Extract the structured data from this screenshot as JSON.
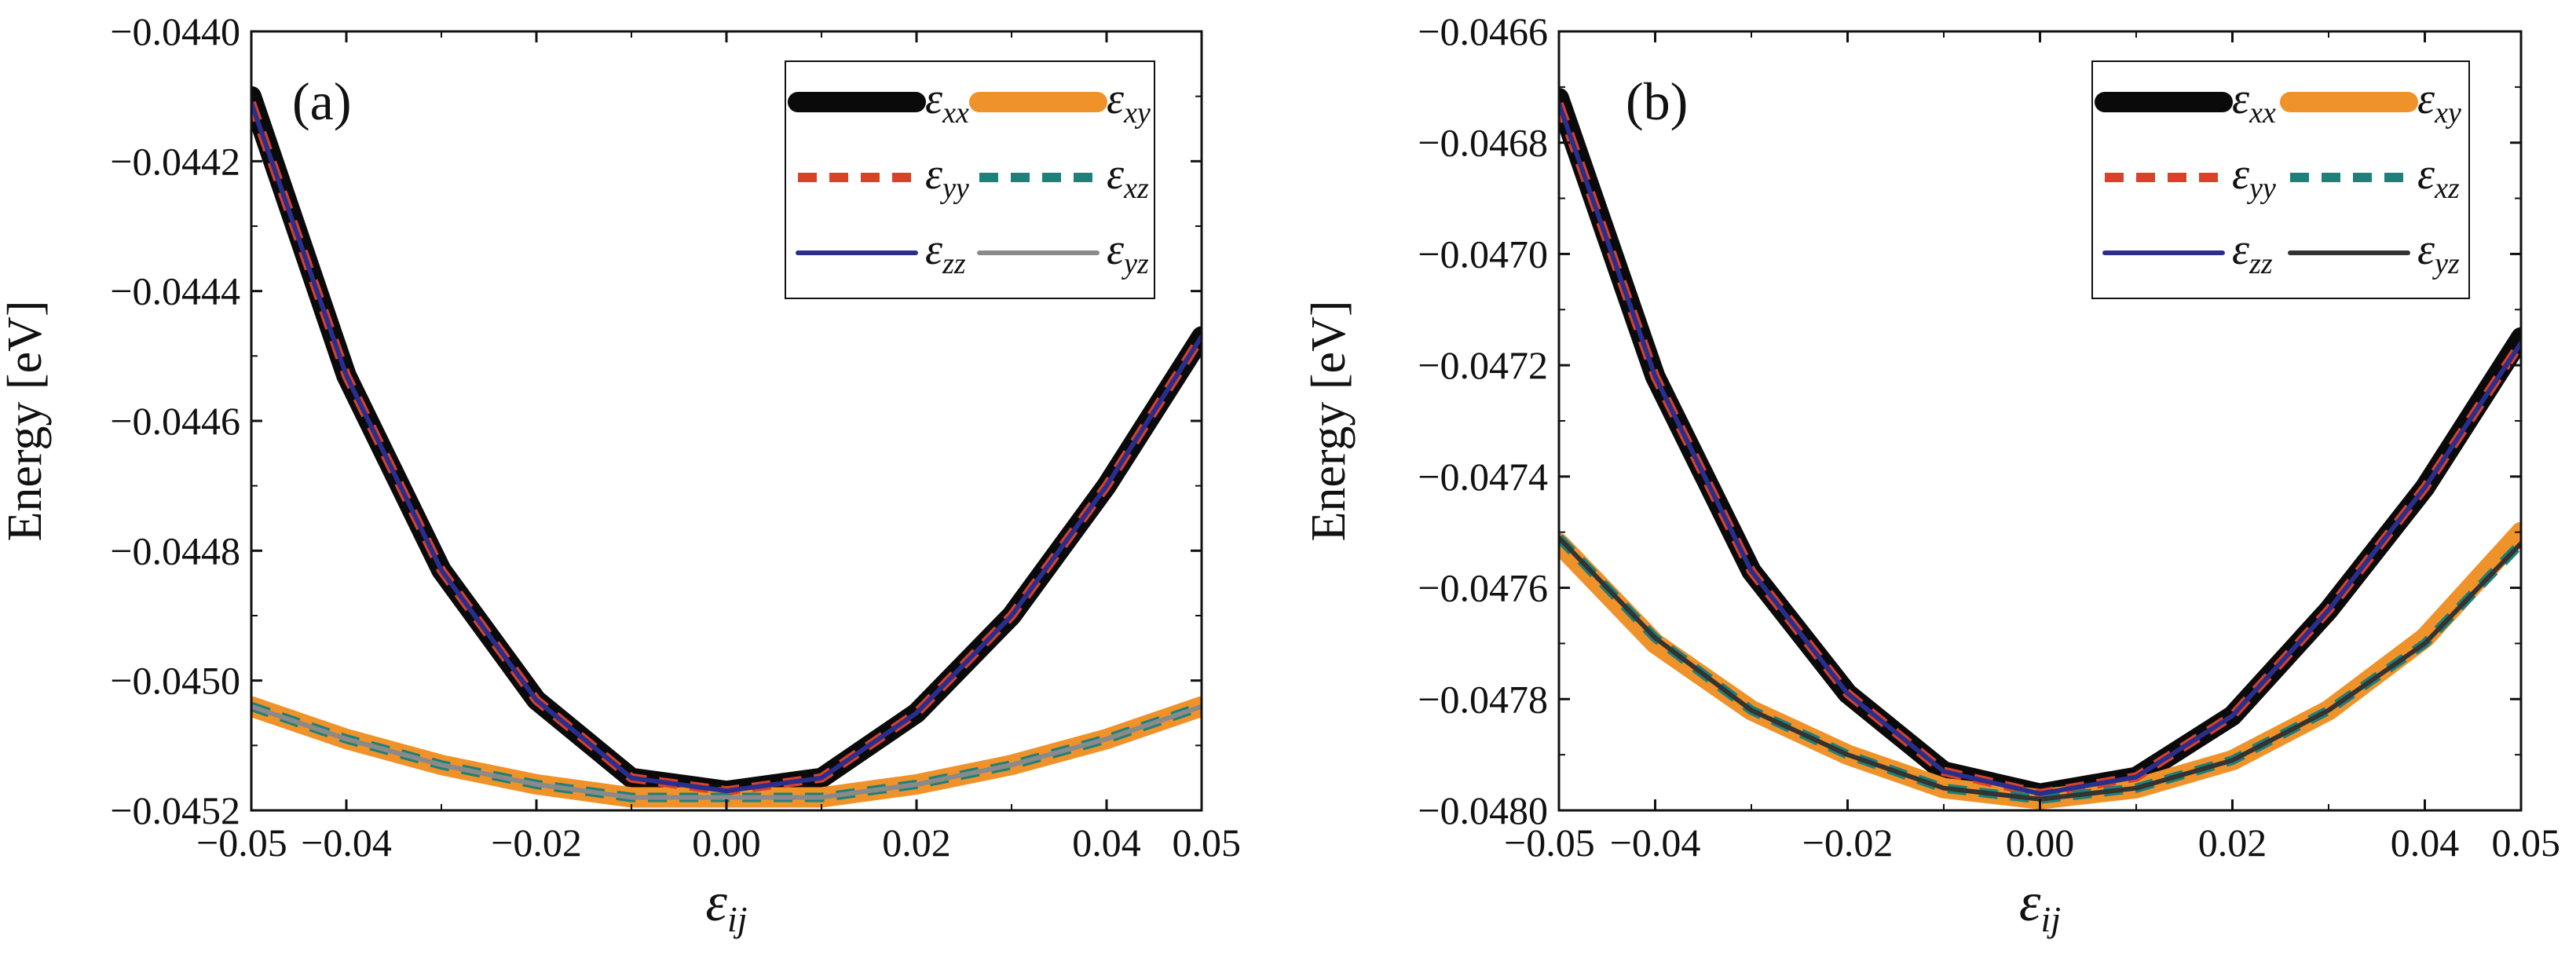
{
  "chart_data": [
    {
      "type": "line",
      "panel_label": "(a)",
      "xlabel": "ε_ij",
      "ylabel": "Energy  [eV]",
      "xlim": [
        -0.05,
        0.05
      ],
      "ylim": [
        -0.0452,
        -0.044
      ],
      "x_ticks": [
        -0.05,
        -0.04,
        -0.02,
        0.0,
        0.02,
        0.04,
        0.05
      ],
      "x_tick_labels": [
        "−0.05",
        "−0.04",
        "−0.02",
        "0.00",
        "0.02",
        "0.04",
        "0.05"
      ],
      "y_ticks": [
        -0.0452,
        -0.045,
        -0.0448,
        -0.0446,
        -0.0444,
        -0.0442,
        -0.044
      ],
      "y_tick_labels": [
        "−0.0452",
        "−0.0450",
        "−0.0448",
        "−0.0446",
        "−0.0444",
        "−0.0442",
        "−0.0440"
      ],
      "legend_position": "top-right",
      "x": [
        -0.05,
        -0.04,
        -0.03,
        -0.02,
        -0.01,
        0.0,
        0.01,
        0.02,
        0.03,
        0.04,
        0.05
      ],
      "series": [
        {
          "name": "xx",
          "symbol": "ε",
          "sub": "xx",
          "color": "#0a0a0a",
          "style": "thick",
          "values": [
            -0.0441,
            -0.04453,
            -0.04483,
            -0.04503,
            -0.04515,
            -0.04517,
            -0.04515,
            -0.04505,
            -0.0449,
            -0.0447,
            -0.04447
          ]
        },
        {
          "name": "xy",
          "symbol": "ε",
          "sub": "xy",
          "color": "#f0922a",
          "style": "thick",
          "values": [
            -0.04504,
            -0.04509,
            -0.04513,
            -0.04516,
            -0.04518,
            -0.04518,
            -0.04518,
            -0.04516,
            -0.04513,
            -0.04509,
            -0.04504
          ]
        },
        {
          "name": "yy",
          "symbol": "ε",
          "sub": "yy",
          "color": "#d9412a",
          "style": "dashed",
          "values": [
            -0.04411,
            -0.04453,
            -0.04483,
            -0.04503,
            -0.04515,
            -0.04517,
            -0.04515,
            -0.04505,
            -0.0449,
            -0.0447,
            -0.04447
          ]
        },
        {
          "name": "xz",
          "symbol": "ε",
          "sub": "xz",
          "color": "#1e8078",
          "style": "dashed",
          "values": [
            -0.04504,
            -0.04509,
            -0.04513,
            -0.04516,
            -0.04518,
            -0.04518,
            -0.04518,
            -0.04516,
            -0.04513,
            -0.04509,
            -0.04504
          ]
        },
        {
          "name": "zz",
          "symbol": "ε",
          "sub": "zz",
          "color": "#2a2e8c",
          "style": "thin",
          "values": [
            -0.04411,
            -0.04453,
            -0.04483,
            -0.04503,
            -0.04515,
            -0.04517,
            -0.04515,
            -0.04505,
            -0.0449,
            -0.0447,
            -0.04447
          ]
        },
        {
          "name": "yz",
          "symbol": "ε",
          "sub": "yz",
          "color": "#8a8a8a",
          "style": "thin",
          "values": [
            -0.04504,
            -0.04509,
            -0.04513,
            -0.04516,
            -0.04518,
            -0.04518,
            -0.04518,
            -0.04516,
            -0.04513,
            -0.04509,
            -0.04504
          ]
        }
      ]
    },
    {
      "type": "line",
      "panel_label": "(b)",
      "xlabel": "ε_ij",
      "ylabel": "Energy  [eV]",
      "xlim": [
        -0.05,
        0.05
      ],
      "ylim": [
        -0.048,
        -0.0466
      ],
      "x_ticks": [
        -0.05,
        -0.04,
        -0.02,
        0.0,
        0.02,
        0.04,
        0.05
      ],
      "x_tick_labels": [
        "−0.05",
        "−0.04",
        "−0.02",
        "0.00",
        "0.02",
        "0.04",
        "0.05"
      ],
      "y_ticks": [
        -0.048,
        -0.0478,
        -0.0476,
        -0.0474,
        -0.0472,
        -0.047,
        -0.0468,
        -0.0466
      ],
      "y_tick_labels": [
        "−0.0480",
        "−0.0478",
        "−0.0476",
        "−0.0474",
        "−0.0472",
        "−0.0470",
        "−0.0468",
        "−0.0466"
      ],
      "legend_position": "top-right",
      "x": [
        -0.05,
        -0.04,
        -0.03,
        -0.02,
        -0.01,
        0.0,
        0.01,
        0.02,
        0.03,
        0.04,
        0.05
      ],
      "series": [
        {
          "name": "xx",
          "symbol": "ε",
          "sub": "xx",
          "color": "#0a0a0a",
          "style": "thick",
          "values": [
            -0.04672,
            -0.04722,
            -0.04757,
            -0.04779,
            -0.04793,
            -0.04797,
            -0.04794,
            -0.04783,
            -0.04764,
            -0.04742,
            -0.04715
          ]
        },
        {
          "name": "xy",
          "symbol": "ε",
          "sub": "xy",
          "color": "#f0922a",
          "style": "thick",
          "values": [
            -0.04752,
            -0.0477,
            -0.04782,
            -0.0479,
            -0.04796,
            -0.04798,
            -0.04796,
            -0.04791,
            -0.04782,
            -0.04769,
            -0.0475
          ]
        },
        {
          "name": "yy",
          "symbol": "ε",
          "sub": "yy",
          "color": "#d9412a",
          "style": "dashed",
          "values": [
            -0.04673,
            -0.04722,
            -0.04757,
            -0.04779,
            -0.04793,
            -0.04797,
            -0.04794,
            -0.04783,
            -0.04764,
            -0.04742,
            -0.04716
          ]
        },
        {
          "name": "xz",
          "symbol": "ε",
          "sub": "xz",
          "color": "#1e8078",
          "style": "dashed",
          "values": [
            -0.04751,
            -0.04769,
            -0.04782,
            -0.0479,
            -0.04796,
            -0.04798,
            -0.04796,
            -0.04791,
            -0.04782,
            -0.0477,
            -0.04752
          ]
        },
        {
          "name": "zz",
          "symbol": "ε",
          "sub": "zz",
          "color": "#2a2e8c",
          "style": "thin",
          "values": [
            -0.04673,
            -0.04722,
            -0.04757,
            -0.04779,
            -0.04793,
            -0.04797,
            -0.04794,
            -0.04783,
            -0.04764,
            -0.04742,
            -0.04716
          ]
        },
        {
          "name": "yz",
          "symbol": "ε",
          "sub": "yz",
          "color": "#333333",
          "style": "thin",
          "values": [
            -0.04751,
            -0.04769,
            -0.04782,
            -0.0479,
            -0.04796,
            -0.04798,
            -0.04796,
            -0.04791,
            -0.04782,
            -0.0477,
            -0.04752
          ]
        }
      ]
    }
  ]
}
